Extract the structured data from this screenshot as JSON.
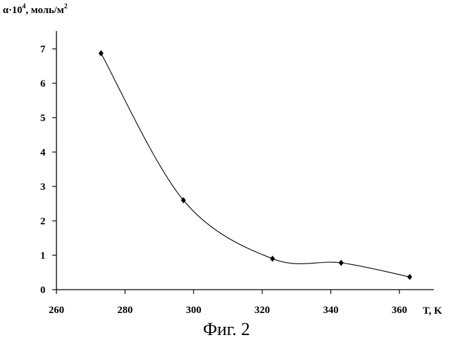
{
  "chart_data": {
    "type": "line",
    "title": "",
    "ylabel": {
      "prefix": "α·10",
      "exponent": "4",
      "unit_prefix": ", моль/м",
      "unit_exponent": "2"
    },
    "xlabel": "T, K",
    "xlim": [
      260,
      370
    ],
    "ylim": [
      0,
      7.5
    ],
    "x_ticks": [
      "260",
      "280",
      "300",
      "320",
      "340",
      "360"
    ],
    "y_ticks": [
      "0",
      "1",
      "2",
      "3",
      "4",
      "5",
      "6",
      "7"
    ],
    "x_tick_values": [
      260,
      280,
      300,
      320,
      340,
      360
    ],
    "y_tick_values": [
      0,
      1,
      2,
      3,
      4,
      5,
      6,
      7
    ],
    "series": [
      {
        "x": [
          273,
          297,
          323,
          343,
          363
        ],
        "y": [
          6.87,
          2.6,
          0.9,
          0.78,
          0.37
        ],
        "marker": "diamond",
        "smooth": true
      }
    ],
    "grid": false,
    "legend": "none"
  },
  "caption": "Фиг. 2"
}
